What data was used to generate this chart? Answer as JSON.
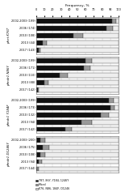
{
  "title": "Frequency, %",
  "groups": [
    {
      "label": "pfcrt K76T",
      "years": [
        "2002-2003 (199)",
        "2006 (174)",
        "2010 (108)",
        "2013 (44)",
        "2017 (143)"
      ],
      "black": [
        92,
        85,
        45,
        8,
        3
      ],
      "gray": [
        5,
        8,
        12,
        5,
        2
      ],
      "white": [
        3,
        7,
        43,
        87,
        95
      ]
    },
    {
      "label": "pfmdr1 N86Y",
      "years": [
        "2002-2003 (199)",
        "2006 (171)",
        "2010 (110)",
        "2013 (88)",
        "2017 (142)"
      ],
      "black": [
        60,
        58,
        28,
        10,
        2
      ],
      "gray": [
        8,
        8,
        10,
        5,
        1
      ],
      "white": [
        32,
        34,
        62,
        85,
        97
      ]
    },
    {
      "label": "pfmdr1 Y184F",
      "years": [
        "2002-2003 (199)",
        "2006 (173)",
        "2010 (132)",
        "2013 (94)",
        "2017 (142)"
      ],
      "black": [
        88,
        90,
        78,
        55,
        35
      ],
      "gray": [
        6,
        5,
        10,
        13,
        8
      ],
      "white": [
        6,
        5,
        12,
        32,
        57
      ]
    },
    {
      "label": "pfmdr1 D1246Y",
      "years": [
        "2002-2003 (200)",
        "2006 (175)",
        "2010 (108)",
        "2013 (94)",
        "2017 (144)"
      ],
      "black": [
        5,
        8,
        5,
        3,
        1
      ],
      "gray": [
        6,
        8,
        6,
        4,
        2
      ],
      "white": [
        89,
        84,
        89,
        93,
        97
      ]
    }
  ],
  "legend": [
    "787, 86Y, Y184, 1246Y",
    "Mixed",
    "K76, N86, 184F, D1246"
  ],
  "bar_height": 0.65,
  "xlim": [
    0,
    100
  ],
  "xticks": [
    0,
    10,
    20,
    30,
    40,
    50,
    60,
    70,
    80,
    90,
    100
  ],
  "xtick_labels": [
    "0",
    "10",
    "20",
    "30",
    "40",
    "50",
    "60",
    "70",
    "80",
    "90",
    "100"
  ],
  "bg_color": "#ffffff",
  "bar_black": "#111111",
  "bar_gray": "#999999",
  "bar_white": "#eeeeee",
  "edge_color": "#444444",
  "edge_lw": 0.3
}
